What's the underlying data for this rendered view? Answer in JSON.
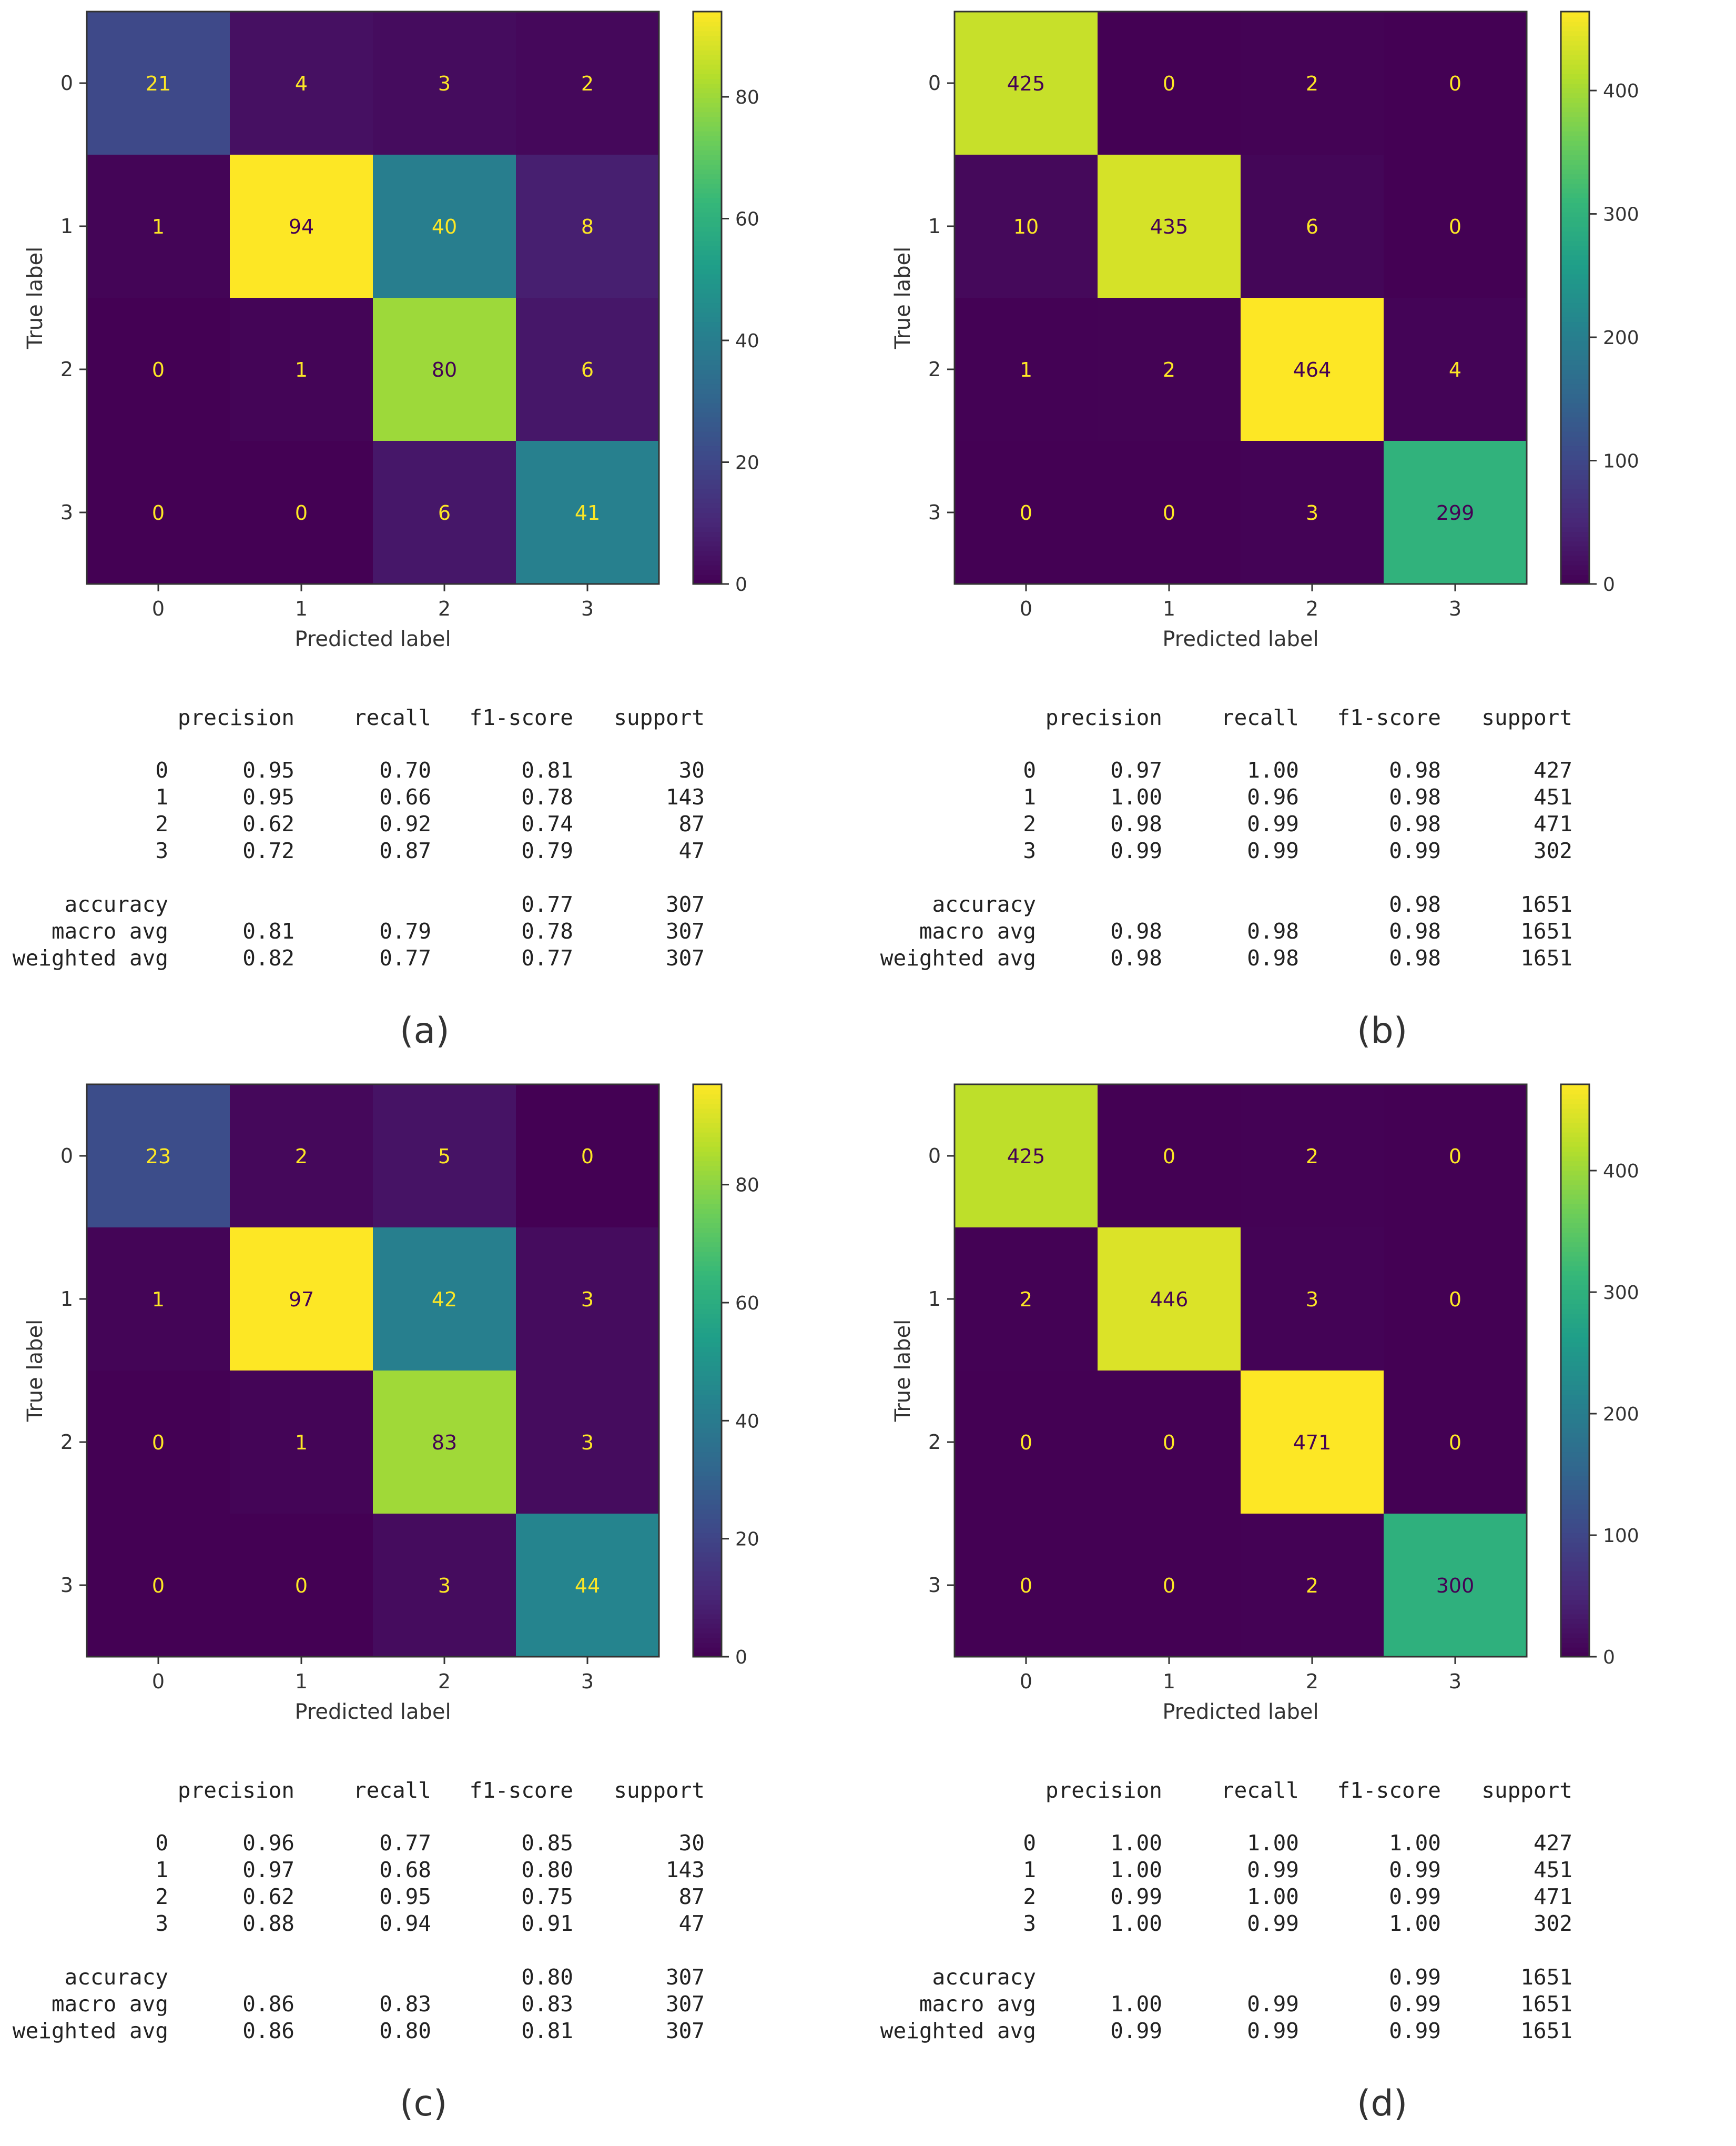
{
  "colormap": [
    "#440154",
    "#482878",
    "#3e4989",
    "#31688e",
    "#26828e",
    "#1f9e89",
    "#35b779",
    "#6ece58",
    "#b5de2b",
    "#fde725"
  ],
  "text_color_dark": "#440154",
  "text_color_light": "#fde725",
  "chart_data": [
    {
      "type": "heatmap",
      "panel": "(a)",
      "title": "",
      "xlabel": "Predicted label",
      "ylabel": "True label",
      "labels": [
        "0",
        "1",
        "2",
        "3"
      ],
      "matrix": [
        [
          21,
          4,
          3,
          2
        ],
        [
          1,
          94,
          40,
          8
        ],
        [
          0,
          1,
          80,
          6
        ],
        [
          0,
          0,
          6,
          41
        ]
      ],
      "vmax": 94,
      "colorbar_ticks": [
        0,
        20,
        40,
        60,
        80
      ],
      "report": {
        "headers": [
          "precision",
          "recall",
          "f1-score",
          "support"
        ],
        "rows": [
          {
            "label": "0",
            "values": [
              "0.95",
              "0.70",
              "0.81",
              "30"
            ]
          },
          {
            "label": "1",
            "values": [
              "0.95",
              "0.66",
              "0.78",
              "143"
            ]
          },
          {
            "label": "2",
            "values": [
              "0.62",
              "0.92",
              "0.74",
              "87"
            ]
          },
          {
            "label": "3",
            "values": [
              "0.72",
              "0.87",
              "0.79",
              "47"
            ]
          }
        ],
        "summary": [
          {
            "label": "accuracy",
            "values": [
              "",
              "",
              "0.77",
              "307"
            ]
          },
          {
            "label": "macro avg",
            "values": [
              "0.81",
              "0.79",
              "0.78",
              "307"
            ]
          },
          {
            "label": "weighted avg",
            "values": [
              "0.82",
              "0.77",
              "0.77",
              "307"
            ]
          }
        ]
      }
    },
    {
      "type": "heatmap",
      "panel": "(b)",
      "title": "",
      "xlabel": "Predicted label",
      "ylabel": "True label",
      "labels": [
        "0",
        "1",
        "2",
        "3"
      ],
      "matrix": [
        [
          425,
          0,
          2,
          0
        ],
        [
          10,
          435,
          6,
          0
        ],
        [
          1,
          2,
          464,
          4
        ],
        [
          0,
          0,
          3,
          299
        ]
      ],
      "vmax": 464,
      "colorbar_ticks": [
        0,
        100,
        200,
        300,
        400
      ],
      "report": {
        "headers": [
          "precision",
          "recall",
          "f1-score",
          "support"
        ],
        "rows": [
          {
            "label": "0",
            "values": [
              "0.97",
              "1.00",
              "0.98",
              "427"
            ]
          },
          {
            "label": "1",
            "values": [
              "1.00",
              "0.96",
              "0.98",
              "451"
            ]
          },
          {
            "label": "2",
            "values": [
              "0.98",
              "0.99",
              "0.98",
              "471"
            ]
          },
          {
            "label": "3",
            "values": [
              "0.99",
              "0.99",
              "0.99",
              "302"
            ]
          }
        ],
        "summary": [
          {
            "label": "accuracy",
            "values": [
              "",
              "",
              "0.98",
              "1651"
            ]
          },
          {
            "label": "macro avg",
            "values": [
              "0.98",
              "0.98",
              "0.98",
              "1651"
            ]
          },
          {
            "label": "weighted avg",
            "values": [
              "0.98",
              "0.98",
              "0.98",
              "1651"
            ]
          }
        ]
      }
    },
    {
      "type": "heatmap",
      "panel": "(c)",
      "title": "",
      "xlabel": "Predicted label",
      "ylabel": "True label",
      "labels": [
        "0",
        "1",
        "2",
        "3"
      ],
      "matrix": [
        [
          23,
          2,
          5,
          0
        ],
        [
          1,
          97,
          42,
          3
        ],
        [
          0,
          1,
          83,
          3
        ],
        [
          0,
          0,
          3,
          44
        ]
      ],
      "vmax": 97,
      "colorbar_ticks": [
        0,
        20,
        40,
        60,
        80
      ],
      "report": {
        "headers": [
          "precision",
          "recall",
          "f1-score",
          "support"
        ],
        "rows": [
          {
            "label": "0",
            "values": [
              "0.96",
              "0.77",
              "0.85",
              "30"
            ]
          },
          {
            "label": "1",
            "values": [
              "0.97",
              "0.68",
              "0.80",
              "143"
            ]
          },
          {
            "label": "2",
            "values": [
              "0.62",
              "0.95",
              "0.75",
              "87"
            ]
          },
          {
            "label": "3",
            "values": [
              "0.88",
              "0.94",
              "0.91",
              "47"
            ]
          }
        ],
        "summary": [
          {
            "label": "accuracy",
            "values": [
              "",
              "",
              "0.80",
              "307"
            ]
          },
          {
            "label": "macro avg",
            "values": [
              "0.86",
              "0.83",
              "0.83",
              "307"
            ]
          },
          {
            "label": "weighted avg",
            "values": [
              "0.86",
              "0.80",
              "0.81",
              "307"
            ]
          }
        ]
      }
    },
    {
      "type": "heatmap",
      "panel": "(d)",
      "title": "",
      "xlabel": "Predicted label",
      "ylabel": "True label",
      "labels": [
        "0",
        "1",
        "2",
        "3"
      ],
      "matrix": [
        [
          425,
          0,
          2,
          0
        ],
        [
          2,
          446,
          3,
          0
        ],
        [
          0,
          0,
          471,
          0
        ],
        [
          0,
          0,
          2,
          300
        ]
      ],
      "vmax": 471,
      "colorbar_ticks": [
        0,
        100,
        200,
        300,
        400
      ],
      "report": {
        "headers": [
          "precision",
          "recall",
          "f1-score",
          "support"
        ],
        "rows": [
          {
            "label": "0",
            "values": [
              "1.00",
              "1.00",
              "1.00",
              "427"
            ]
          },
          {
            "label": "1",
            "values": [
              "1.00",
              "0.99",
              "0.99",
              "451"
            ]
          },
          {
            "label": "2",
            "values": [
              "0.99",
              "1.00",
              "0.99",
              "471"
            ]
          },
          {
            "label": "3",
            "values": [
              "1.00",
              "0.99",
              "1.00",
              "302"
            ]
          }
        ],
        "summary": [
          {
            "label": "accuracy",
            "values": [
              "",
              "",
              "0.99",
              "1651"
            ]
          },
          {
            "label": "macro avg",
            "values": [
              "1.00",
              "0.99",
              "0.99",
              "1651"
            ]
          },
          {
            "label": "weighted avg",
            "values": [
              "0.99",
              "0.99",
              "0.99",
              "1651"
            ]
          }
        ]
      }
    }
  ]
}
